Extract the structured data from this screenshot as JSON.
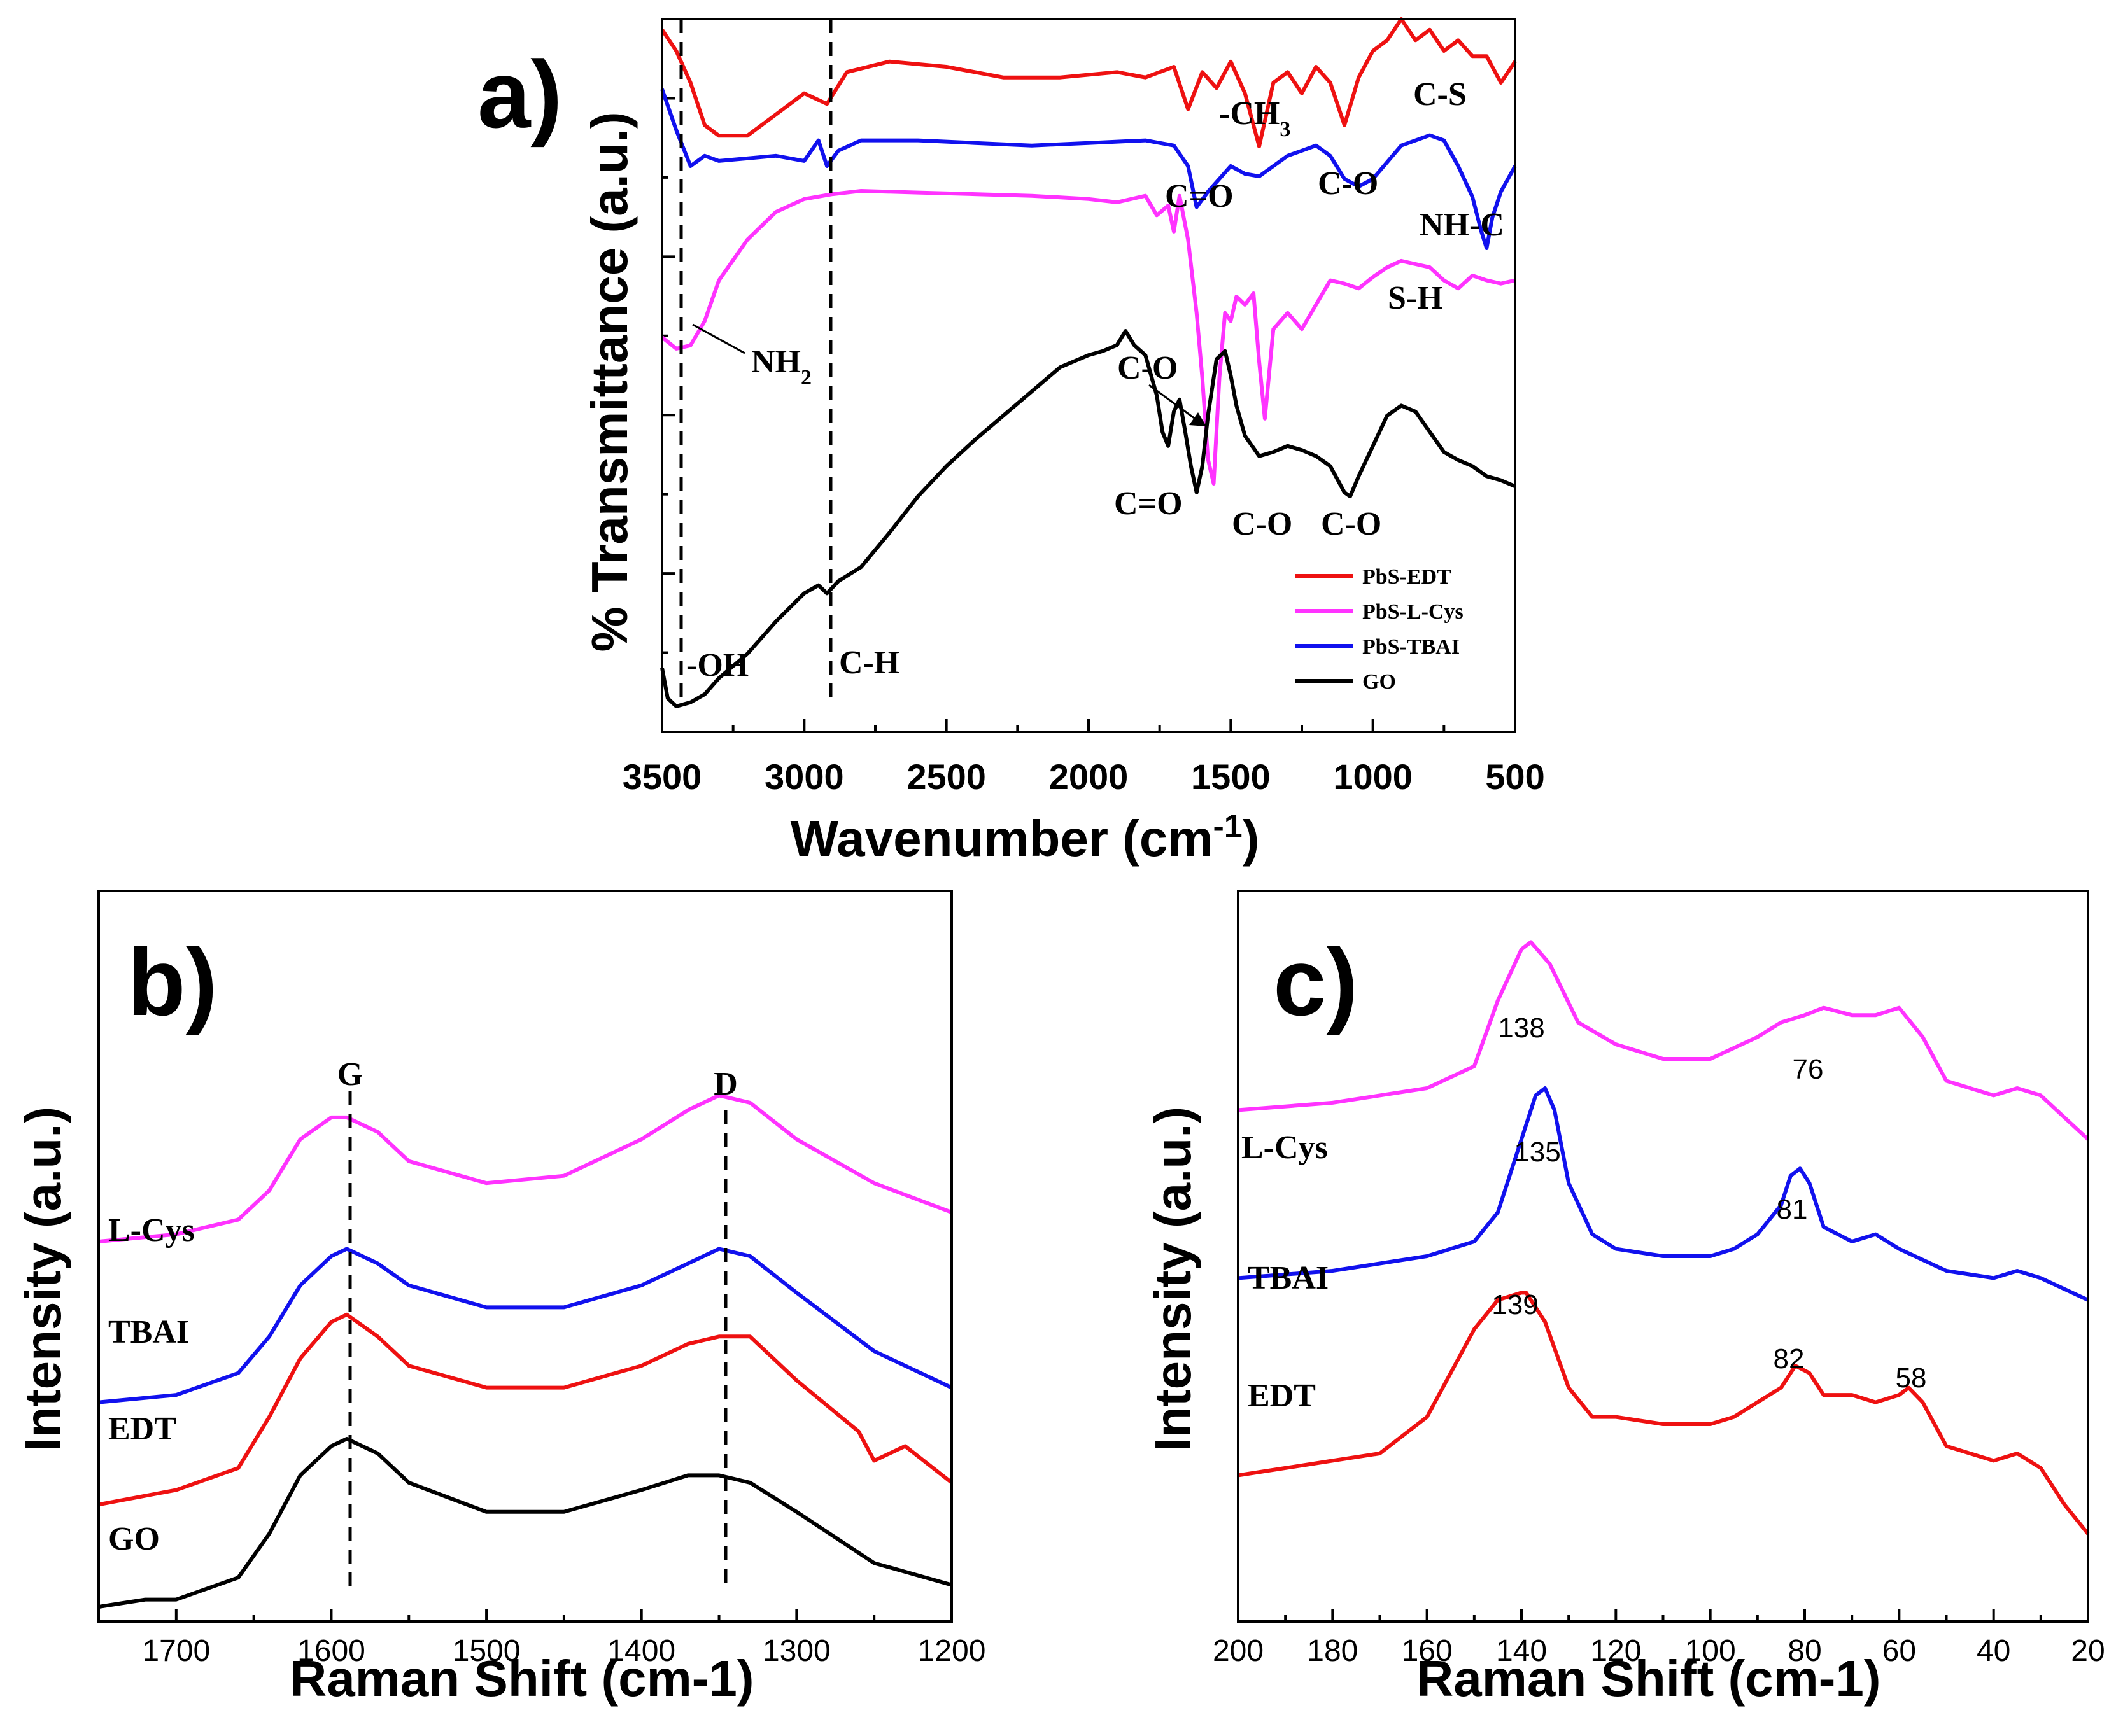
{
  "colors": {
    "red": "#ee1111",
    "magenta": "#ff33ff",
    "blue": "#1111ee",
    "black": "#000000"
  },
  "chart_data": [
    {
      "panel": "a)",
      "type": "line",
      "xlabel": "Wavenumber (cm-1)",
      "xlabel_main": "Wavenumber (cm",
      "xlabel_sup": "-1",
      "xlabel_end": ")",
      "ylabel": "% Transmittance (a.u.)",
      "xlim": [
        3500,
        500
      ],
      "ylim": [
        0,
        4.4
      ],
      "xticks": [
        3500,
        3000,
        2500,
        2000,
        1500,
        1000,
        500
      ],
      "xtick_labels": [
        "3500",
        "3000",
        "2500",
        "2000",
        "1500",
        "1000",
        "500"
      ],
      "grid": false,
      "legend_position": "bottom-right",
      "legend": [
        "PbS-EDT",
        "PbS-L-Cys",
        "PbS-TBAI",
        "GO"
      ],
      "vlines": [
        3450,
        2920
      ],
      "series": [
        {
          "name": "PbS-EDT",
          "color": "#ee1111",
          "x": [
            3500,
            3450,
            3400,
            3350,
            3300,
            3200,
            3100,
            3000,
            2920,
            2850,
            2700,
            2500,
            2300,
            2100,
            1900,
            1800,
            1700,
            1650,
            1600,
            1550,
            1500,
            1450,
            1400,
            1350,
            1300,
            1250,
            1200,
            1150,
            1100,
            1050,
            1000,
            950,
            900,
            850,
            800,
            750,
            700,
            650,
            600,
            550,
            500
          ],
          "y": [
            4.0,
            3.96,
            3.9,
            3.82,
            3.8,
            3.8,
            3.84,
            3.88,
            3.86,
            3.92,
            3.94,
            3.93,
            3.91,
            3.91,
            3.92,
            3.91,
            3.93,
            3.85,
            3.92,
            3.89,
            3.94,
            3.88,
            3.78,
            3.9,
            3.92,
            3.88,
            3.93,
            3.9,
            3.82,
            3.91,
            3.96,
            3.98,
            4.02,
            3.98,
            4.0,
            3.96,
            3.98,
            3.95,
            3.95,
            3.9,
            3.94
          ]
        },
        {
          "name": "PbS-TBAI",
          "color": "#1111ee",
          "x": [
            3500,
            3450,
            3400,
            3350,
            3300,
            3200,
            3100,
            3000,
            2950,
            2920,
            2880,
            2800,
            2600,
            2400,
            2200,
            2000,
            1800,
            1700,
            1650,
            1620,
            1580,
            1500,
            1450,
            1400,
            1350,
            1300,
            1250,
            1200,
            1150,
            1100,
            1050,
            1000,
            900,
            800,
            750,
            700,
            650,
            620,
            600,
            580,
            550,
            500
          ],
          "y": [
            3.6,
            3.44,
            3.3,
            3.34,
            3.32,
            3.33,
            3.34,
            3.32,
            3.4,
            3.3,
            3.36,
            3.4,
            3.4,
            3.39,
            3.38,
            3.39,
            3.4,
            3.38,
            3.3,
            3.14,
            3.2,
            3.3,
            3.27,
            3.26,
            3.3,
            3.34,
            3.36,
            3.38,
            3.34,
            3.25,
            3.22,
            3.25,
            3.38,
            3.42,
            3.4,
            3.3,
            3.18,
            3.05,
            2.98,
            3.1,
            3.2,
            3.3
          ]
        },
        {
          "name": "PbS-L-Cys",
          "color": "#ff33ff",
          "x": [
            3500,
            3450,
            3400,
            3350,
            3300,
            3200,
            3100,
            3000,
            2900,
            2800,
            2600,
            2400,
            2200,
            2000,
            1900,
            1800,
            1760,
            1720,
            1700,
            1680,
            1650,
            1620,
            1600,
            1580,
            1560,
            1540,
            1520,
            1500,
            1480,
            1450,
            1420,
            1400,
            1380,
            1350,
            1300,
            1250,
            1200,
            1150,
            1100,
            1050,
            1000,
            950,
            900,
            850,
            800,
            750,
            700,
            650,
            600,
            550,
            500
          ],
          "y": [
            1.95,
            1.88,
            1.9,
            2.05,
            2.3,
            2.55,
            2.72,
            2.8,
            2.83,
            2.85,
            2.84,
            2.83,
            2.82,
            2.8,
            2.78,
            2.82,
            2.7,
            2.76,
            2.6,
            2.82,
            2.55,
            2.1,
            1.7,
            1.2,
            1.05,
            1.7,
            2.1,
            2.05,
            2.2,
            2.15,
            2.22,
            1.8,
            1.45,
            2.0,
            2.1,
            2.0,
            2.15,
            2.3,
            2.28,
            2.25,
            2.32,
            2.38,
            2.42,
            2.4,
            2.38,
            2.3,
            2.25,
            2.33,
            2.3,
            2.28,
            2.3
          ]
        },
        {
          "name": "GO",
          "color": "#000000",
          "x": [
            3500,
            3480,
            3450,
            3400,
            3350,
            3300,
            3200,
            3100,
            3000,
            2950,
            2920,
            2880,
            2800,
            2700,
            2600,
            2500,
            2400,
            2300,
            2200,
            2100,
            2000,
            1950,
            1900,
            1870,
            1840,
            1800,
            1760,
            1740,
            1720,
            1700,
            1680,
            1660,
            1640,
            1620,
            1600,
            1580,
            1550,
            1520,
            1500,
            1480,
            1450,
            1400,
            1350,
            1300,
            1250,
            1200,
            1150,
            1100,
            1080,
            1050,
            1000,
            950,
            900,
            850,
            800,
            750,
            700,
            650,
            600,
            550,
            500
          ],
          "y": [
            0.55,
            0.4,
            0.36,
            0.38,
            0.42,
            0.5,
            0.62,
            0.78,
            0.92,
            0.96,
            0.92,
            0.98,
            1.05,
            1.22,
            1.4,
            1.55,
            1.68,
            1.8,
            1.92,
            2.04,
            2.1,
            2.12,
            2.15,
            2.22,
            2.15,
            2.1,
            1.9,
            1.72,
            1.65,
            1.82,
            1.88,
            1.72,
            1.55,
            1.42,
            1.55,
            1.8,
            2.08,
            2.12,
            2.0,
            1.85,
            1.7,
            1.6,
            1.62,
            1.65,
            1.63,
            1.6,
            1.55,
            1.42,
            1.4,
            1.5,
            1.65,
            1.8,
            1.85,
            1.82,
            1.72,
            1.62,
            1.58,
            1.55,
            1.5,
            1.48,
            1.45
          ]
        }
      ],
      "annotations": {
        "ch3_main": "-CH",
        "ch3_sub": "3",
        "cs": "C-S",
        "co_top": "C=O",
        "co_blue": "C-O",
        "nhc": "NH-C",
        "sh": "S-H",
        "nh2_main": "NH",
        "nh2_sub": "2",
        "co_arrow": "C-O",
        "co_black1": "C=O",
        "co_black2": "C-O",
        "co_black3": "C-O",
        "oh": "-OH",
        "ch": "C-H"
      }
    },
    {
      "panel": "b)",
      "type": "line",
      "xlabel": "Raman Shift (cm-1)",
      "ylabel": "Intensity (a.u.)",
      "xlim": [
        1750,
        1200
      ],
      "ylim": [
        0,
        1.0
      ],
      "xticks": [
        1700,
        1600,
        1500,
        1400,
        1300,
        1200
      ],
      "xtick_labels": [
        "1700",
        "1600",
        "1500",
        "1400",
        "1300",
        "1200"
      ],
      "grid": false,
      "vlines": [
        1590,
        1345
      ],
      "vline_labels": [
        "G",
        "D"
      ],
      "series": [
        {
          "name": "L-Cys",
          "color": "#ff33ff",
          "x": [
            1750,
            1700,
            1660,
            1640,
            1620,
            1600,
            1590,
            1570,
            1550,
            1500,
            1450,
            1400,
            1370,
            1350,
            1330,
            1300,
            1250,
            1200
          ],
          "y": [
            0.52,
            0.53,
            0.55,
            0.59,
            0.66,
            0.69,
            0.69,
            0.67,
            0.63,
            0.6,
            0.61,
            0.66,
            0.7,
            0.72,
            0.71,
            0.66,
            0.6,
            0.56
          ]
        },
        {
          "name": "TBAI",
          "color": "#1111ee",
          "x": [
            1750,
            1700,
            1660,
            1640,
            1620,
            1600,
            1590,
            1570,
            1550,
            1500,
            1450,
            1400,
            1370,
            1350,
            1330,
            1300,
            1250,
            1200
          ],
          "y": [
            0.3,
            0.31,
            0.34,
            0.39,
            0.46,
            0.5,
            0.51,
            0.49,
            0.46,
            0.43,
            0.43,
            0.46,
            0.49,
            0.51,
            0.5,
            0.45,
            0.37,
            0.32
          ]
        },
        {
          "name": "EDT",
          "color": "#ee1111",
          "x": [
            1750,
            1700,
            1660,
            1640,
            1620,
            1600,
            1590,
            1570,
            1550,
            1500,
            1450,
            1400,
            1370,
            1350,
            1330,
            1300,
            1260,
            1250,
            1230,
            1200
          ],
          "y": [
            0.16,
            0.18,
            0.21,
            0.28,
            0.36,
            0.41,
            0.42,
            0.39,
            0.35,
            0.32,
            0.32,
            0.35,
            0.38,
            0.39,
            0.39,
            0.33,
            0.26,
            0.22,
            0.24,
            0.19
          ]
        },
        {
          "name": "GO",
          "color": "#000000",
          "x": [
            1750,
            1720,
            1700,
            1660,
            1640,
            1620,
            1600,
            1590,
            1570,
            1550,
            1500,
            1450,
            1400,
            1370,
            1350,
            1330,
            1300,
            1250,
            1200
          ],
          "y": [
            0.02,
            0.03,
            0.03,
            0.06,
            0.12,
            0.2,
            0.24,
            0.25,
            0.23,
            0.19,
            0.15,
            0.15,
            0.18,
            0.2,
            0.2,
            0.19,
            0.15,
            0.08,
            0.05
          ]
        }
      ]
    },
    {
      "panel": "c)",
      "type": "line",
      "xlabel": "Raman Shift (cm-1)",
      "ylabel": "Intensity (a.u.)",
      "xlim": [
        200,
        20
      ],
      "ylim": [
        0,
        1.0
      ],
      "xticks": [
        200,
        180,
        160,
        140,
        120,
        100,
        80,
        60,
        40,
        20
      ],
      "xtick_labels": [
        "200",
        "180",
        "160",
        "140",
        "120",
        "100",
        "80",
        "60",
        "40",
        "20"
      ],
      "grid": false,
      "series": [
        {
          "name": "L-Cys",
          "color": "#ff33ff",
          "x": [
            200,
            180,
            160,
            150,
            145,
            140,
            138,
            134,
            128,
            120,
            110,
            100,
            90,
            85,
            80,
            76,
            70,
            65,
            60,
            55,
            50,
            40,
            35,
            30,
            25,
            20
          ],
          "y": [
            0.7,
            0.71,
            0.73,
            0.76,
            0.85,
            0.92,
            0.93,
            0.9,
            0.82,
            0.79,
            0.77,
            0.77,
            0.8,
            0.82,
            0.83,
            0.84,
            0.83,
            0.83,
            0.84,
            0.8,
            0.74,
            0.72,
            0.73,
            0.72,
            0.69,
            0.66
          ]
        },
        {
          "name": "TBAI",
          "color": "#1111ee",
          "x": [
            200,
            180,
            160,
            150,
            145,
            140,
            137,
            135,
            133,
            130,
            125,
            120,
            110,
            100,
            95,
            90,
            85,
            83,
            81,
            79,
            76,
            70,
            65,
            60,
            50,
            40,
            35,
            30,
            20
          ],
          "y": [
            0.47,
            0.48,
            0.5,
            0.52,
            0.56,
            0.66,
            0.72,
            0.73,
            0.7,
            0.6,
            0.53,
            0.51,
            0.5,
            0.5,
            0.51,
            0.53,
            0.57,
            0.61,
            0.62,
            0.6,
            0.54,
            0.52,
            0.53,
            0.51,
            0.48,
            0.47,
            0.48,
            0.47,
            0.44
          ]
        },
        {
          "name": "EDT",
          "color": "#ee1111",
          "x": [
            200,
            190,
            180,
            170,
            160,
            155,
            150,
            145,
            140,
            139,
            135,
            130,
            125,
            120,
            110,
            100,
            95,
            90,
            85,
            82,
            79,
            76,
            70,
            65,
            60,
            58,
            55,
            50,
            40,
            35,
            30,
            25,
            20
          ],
          "y": [
            0.2,
            0.21,
            0.22,
            0.23,
            0.28,
            0.34,
            0.4,
            0.44,
            0.45,
            0.45,
            0.41,
            0.32,
            0.28,
            0.28,
            0.27,
            0.27,
            0.28,
            0.3,
            0.32,
            0.35,
            0.34,
            0.31,
            0.31,
            0.3,
            0.31,
            0.32,
            0.3,
            0.24,
            0.22,
            0.23,
            0.21,
            0.16,
            0.12
          ]
        }
      ],
      "peak_labels": {
        "l_138": "138",
        "l_76": "76",
        "t_135": "135",
        "t_81": "81",
        "e_139": "139",
        "e_82": "82",
        "e_58": "58"
      }
    }
  ]
}
